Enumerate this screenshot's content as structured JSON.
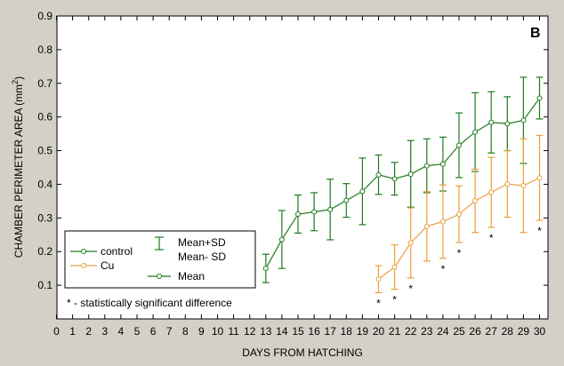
{
  "chart_data": {
    "type": "line",
    "panel_label": "B",
    "xlabel": "DAYS FROM HATCHING",
    "ylabel_main": "CHAMBER PERIMETER AREA (mm",
    "ylabel_sup": "2",
    "ylabel_end": ")",
    "xlim": [
      0,
      30
    ],
    "ylim": [
      0,
      0.9
    ],
    "x_ticks": [
      0,
      1,
      2,
      3,
      4,
      5,
      6,
      7,
      8,
      9,
      10,
      11,
      12,
      13,
      14,
      15,
      16,
      17,
      18,
      19,
      20,
      21,
      22,
      23,
      24,
      25,
      26,
      27,
      28,
      29,
      30
    ],
    "y_ticks": [
      0.1,
      0.2,
      0.3,
      0.4,
      0.5,
      0.6,
      0.7,
      0.8,
      0.9
    ],
    "y_tick_labels": [
      "0.1",
      "0.2",
      "0.3",
      "0.4",
      "0.5",
      "0.6",
      "0.7",
      "0.8",
      "0.9"
    ],
    "grid": false,
    "legend_position": "bottom-left",
    "series": [
      {
        "name": "control",
        "color": "#1e7b1e",
        "x": [
          13,
          14,
          15,
          16,
          17,
          18,
          19,
          20,
          21,
          22,
          23,
          24,
          25,
          26,
          27,
          28,
          29,
          30
        ],
        "mean": [
          0.15,
          0.236,
          0.311,
          0.318,
          0.325,
          0.352,
          0.379,
          0.428,
          0.416,
          0.43,
          0.455,
          0.46,
          0.516,
          0.555,
          0.584,
          0.58,
          0.59,
          0.656
        ],
        "upper": [
          0.192,
          0.322,
          0.368,
          0.375,
          0.415,
          0.402,
          0.478,
          0.487,
          0.465,
          0.53,
          0.535,
          0.54,
          0.612,
          0.672,
          0.675,
          0.66,
          0.718,
          0.718
        ],
        "lower": [
          0.108,
          0.15,
          0.255,
          0.262,
          0.235,
          0.302,
          0.28,
          0.37,
          0.368,
          0.332,
          0.375,
          0.38,
          0.42,
          0.438,
          0.493,
          0.5,
          0.462,
          0.594
        ]
      },
      {
        "name": "Cu",
        "color": "#e8a040",
        "x": [
          20,
          21,
          22,
          23,
          24,
          25,
          26,
          27,
          28,
          29,
          30
        ],
        "mean": [
          0.118,
          0.154,
          0.226,
          0.275,
          0.289,
          0.311,
          0.351,
          0.376,
          0.401,
          0.396,
          0.419
        ],
        "upper": [
          0.158,
          0.22,
          0.33,
          0.378,
          0.398,
          0.395,
          0.445,
          0.48,
          0.5,
          0.535,
          0.545
        ],
        "lower": [
          0.078,
          0.088,
          0.122,
          0.172,
          0.18,
          0.227,
          0.257,
          0.272,
          0.302,
          0.257,
          0.293
        ]
      }
    ],
    "significance_marks": [
      {
        "x": 20,
        "label": "*"
      },
      {
        "x": 21,
        "label": "*"
      },
      {
        "x": 22,
        "label": "*"
      },
      {
        "x": 24,
        "label": "*"
      },
      {
        "x": 25,
        "label": "*"
      },
      {
        "x": 27,
        "label": "*"
      },
      {
        "x": 30,
        "label": "*"
      }
    ],
    "legend": {
      "entries": [
        {
          "label": "control",
          "color": "#1e7b1e"
        },
        {
          "label": "Cu",
          "color": "#e8a040"
        }
      ],
      "error_bar_label_1": "Mean+SD",
      "error_bar_label_2": "Mean- SD",
      "mean_label": "Mean",
      "note": "* - statistically significant difference"
    }
  }
}
